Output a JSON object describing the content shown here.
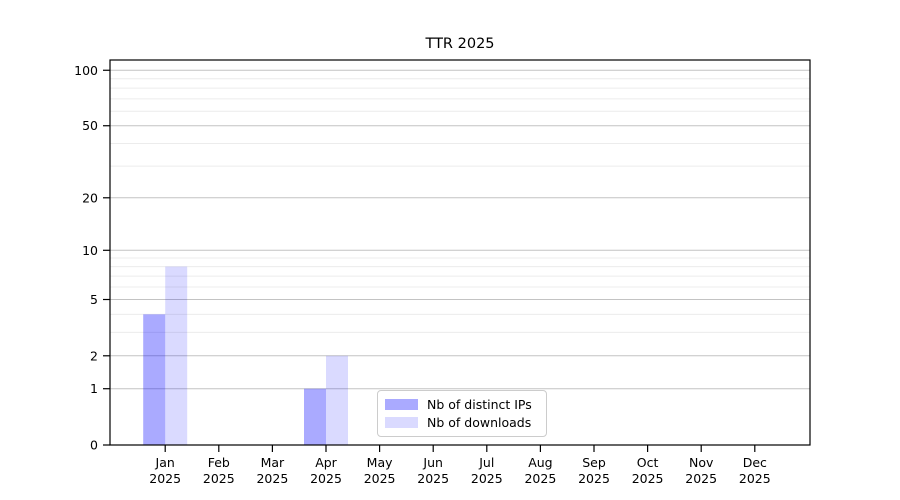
{
  "title": "TTR 2025",
  "colors": {
    "background": "#ffffff",
    "axis": "#000000",
    "grid_major": "#c3c3c3",
    "grid_minor": "#ececec",
    "legend_border": "#cccccc",
    "text": "#000000",
    "distinct_ips_bar": "rgba(0,0,255,0.335)",
    "downloads_bar": "rgba(0,0,255,0.145)"
  },
  "chart_data": {
    "type": "bar",
    "title": "TTR 2025",
    "x_months": [
      "Jan",
      "Feb",
      "Mar",
      "Apr",
      "May",
      "Jun",
      "Jul",
      "Aug",
      "Sep",
      "Oct",
      "Nov",
      "Dec"
    ],
    "x_year": "2025",
    "series": [
      {
        "name": "Nb of distinct IPs",
        "color": "rgba(0,0,255,0.335)",
        "values": [
          4,
          0,
          0,
          1,
          0,
          0,
          0,
          0,
          0,
          0,
          0,
          0
        ]
      },
      {
        "name": "Nb of downloads",
        "color": "rgba(0,0,255,0.145)",
        "values": [
          8,
          0,
          0,
          2,
          0,
          0,
          0,
          0,
          0,
          0,
          0,
          0
        ]
      }
    ],
    "y_ticks": [
      0,
      1,
      2,
      5,
      10,
      20,
      50,
      100
    ],
    "y_minor_ticks": [
      3,
      4,
      6,
      7,
      8,
      9,
      30,
      40,
      60,
      70,
      80,
      90
    ],
    "scale": "log1p",
    "ylim": [
      0,
      113.6
    ],
    "grid": true,
    "legend_position": "lower center"
  },
  "legend": {
    "items": [
      {
        "label": "Nb of distinct IPs"
      },
      {
        "label": "Nb of downloads"
      }
    ]
  }
}
